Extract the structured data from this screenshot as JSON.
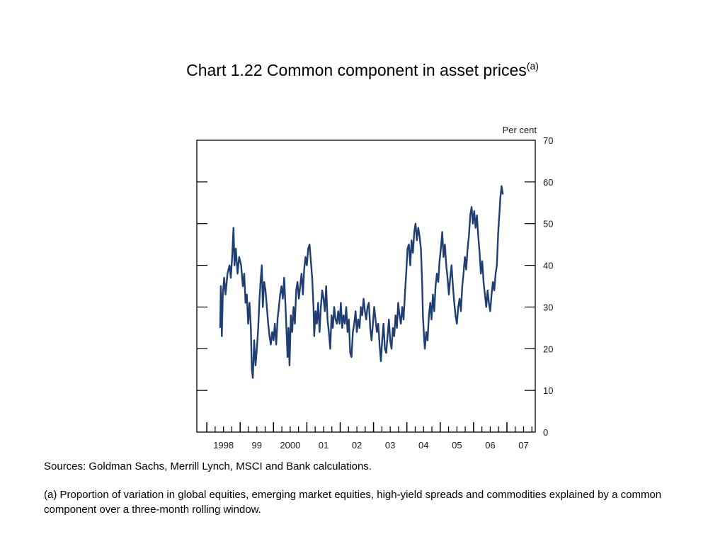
{
  "title": {
    "text": "Chart 1.22  Common component in asset prices",
    "superscript": "(a)"
  },
  "sources": "Sources:  Goldman Sachs, Merrill Lynch, MSCI and Bank calculations.",
  "footnote": "(a) Proportion of variation in global equities, emerging market equities, high-yield spreads and commodities explained by a common component over a three-month rolling window.",
  "colors": {
    "series": "#1f3f73",
    "axis": "#000000",
    "text": "#1a1a1a"
  },
  "chart_data": {
    "type": "line",
    "title": "",
    "ylabel": "Per cent",
    "y_axis_side": "right",
    "ylim": [
      0,
      70
    ],
    "yticks": [
      0,
      10,
      20,
      30,
      40,
      50,
      60,
      70
    ],
    "xlim": [
      1997.7,
      2007.85
    ],
    "xtick_labels": [
      {
        "label": "1998",
        "at": 1998.5
      },
      {
        "label": "99",
        "at": 1999.5
      },
      {
        "label": "2000",
        "at": 2000.5
      },
      {
        "label": "01",
        "at": 2001.5
      },
      {
        "label": "02",
        "at": 2002.5
      },
      {
        "label": "03",
        "at": 2003.5
      },
      {
        "label": "04",
        "at": 2004.5
      },
      {
        "label": "05",
        "at": 2005.5
      },
      {
        "label": "06",
        "at": 2006.5
      },
      {
        "label": "07",
        "at": 2007.5
      }
    ],
    "year_boundaries": [
      1998,
      1999,
      2000,
      2001,
      2002,
      2003,
      2004,
      2005,
      2006,
      2007
    ],
    "grid": false,
    "series": [
      {
        "values": [
          [
            1998.4,
            25
          ],
          [
            1998.42,
            35
          ],
          [
            1998.45,
            23
          ],
          [
            1998.48,
            33
          ],
          [
            1998.52,
            37
          ],
          [
            1998.56,
            33
          ],
          [
            1998.62,
            38
          ],
          [
            1998.68,
            40
          ],
          [
            1998.72,
            37
          ],
          [
            1998.76,
            42
          ],
          [
            1998.8,
            49
          ],
          [
            1998.83,
            40
          ],
          [
            1998.87,
            44
          ],
          [
            1998.92,
            38
          ],
          [
            1998.97,
            42
          ],
          [
            1999.03,
            40
          ],
          [
            1999.08,
            35
          ],
          [
            1999.12,
            38
          ],
          [
            1999.16,
            31
          ],
          [
            1999.2,
            33
          ],
          [
            1999.24,
            26
          ],
          [
            1999.28,
            31
          ],
          [
            1999.32,
            25
          ],
          [
            1999.35,
            15
          ],
          [
            1999.38,
            13
          ],
          [
            1999.42,
            22
          ],
          [
            1999.46,
            16
          ],
          [
            1999.5,
            20
          ],
          [
            1999.54,
            25
          ],
          [
            1999.58,
            32
          ],
          [
            1999.62,
            37
          ],
          [
            1999.65,
            40
          ],
          [
            1999.68,
            30
          ],
          [
            1999.72,
            36
          ],
          [
            1999.76,
            34
          ],
          [
            1999.8,
            30
          ],
          [
            1999.84,
            26
          ],
          [
            1999.88,
            23
          ],
          [
            1999.92,
            21
          ],
          [
            1999.96,
            24
          ],
          [
            2000.0,
            22
          ],
          [
            2000.04,
            26
          ],
          [
            2000.08,
            21
          ],
          [
            2000.12,
            27
          ],
          [
            2000.16,
            30
          ],
          [
            2000.2,
            33
          ],
          [
            2000.24,
            35
          ],
          [
            2000.28,
            32
          ],
          [
            2000.32,
            37
          ],
          [
            2000.36,
            30
          ],
          [
            2000.4,
            22
          ],
          [
            2000.42,
            18
          ],
          [
            2000.45,
            25
          ],
          [
            2000.48,
            16
          ],
          [
            2000.52,
            28
          ],
          [
            2000.56,
            24
          ],
          [
            2000.6,
            30
          ],
          [
            2000.64,
            26
          ],
          [
            2000.68,
            34
          ],
          [
            2000.72,
            36
          ],
          [
            2000.76,
            32
          ],
          [
            2000.8,
            35
          ],
          [
            2000.84,
            38
          ],
          [
            2000.88,
            33
          ],
          [
            2000.92,
            39
          ],
          [
            2000.96,
            42
          ],
          [
            2001.0,
            40
          ],
          [
            2001.04,
            44
          ],
          [
            2001.08,
            45
          ],
          [
            2001.12,
            41
          ],
          [
            2001.16,
            37
          ],
          [
            2001.2,
            30
          ],
          [
            2001.22,
            23
          ],
          [
            2001.26,
            29
          ],
          [
            2001.3,
            26
          ],
          [
            2001.34,
            31
          ],
          [
            2001.38,
            24
          ],
          [
            2001.42,
            30
          ],
          [
            2001.46,
            34
          ],
          [
            2001.5,
            32
          ],
          [
            2001.54,
            29
          ],
          [
            2001.58,
            35
          ],
          [
            2001.62,
            27
          ],
          [
            2001.66,
            24
          ],
          [
            2001.7,
            20
          ],
          [
            2001.74,
            28
          ],
          [
            2001.78,
            25
          ],
          [
            2001.82,
            30
          ],
          [
            2001.86,
            27
          ],
          [
            2001.9,
            26
          ],
          [
            2001.94,
            29
          ],
          [
            2001.98,
            26
          ],
          [
            2002.02,
            31
          ],
          [
            2002.06,
            25
          ],
          [
            2002.1,
            28
          ],
          [
            2002.14,
            26
          ],
          [
            2002.18,
            30
          ],
          [
            2002.22,
            24
          ],
          [
            2002.26,
            27
          ],
          [
            2002.3,
            19
          ],
          [
            2002.34,
            18
          ],
          [
            2002.38,
            24
          ],
          [
            2002.42,
            26
          ],
          [
            2002.46,
            29
          ],
          [
            2002.5,
            24
          ],
          [
            2002.54,
            27
          ],
          [
            2002.58,
            25
          ],
          [
            2002.62,
            30
          ],
          [
            2002.66,
            28
          ],
          [
            2002.7,
            32
          ],
          [
            2002.74,
            29
          ],
          [
            2002.78,
            27
          ],
          [
            2002.82,
            30
          ],
          [
            2002.86,
            31
          ],
          [
            2002.9,
            25
          ],
          [
            2002.94,
            22
          ],
          [
            2002.98,
            26
          ],
          [
            2003.02,
            30
          ],
          [
            2003.06,
            27
          ],
          [
            2003.1,
            24
          ],
          [
            2003.14,
            26
          ],
          [
            2003.18,
            21
          ],
          [
            2003.22,
            17
          ],
          [
            2003.26,
            22
          ],
          [
            2003.3,
            26
          ],
          [
            2003.34,
            20
          ],
          [
            2003.38,
            19
          ],
          [
            2003.42,
            23
          ],
          [
            2003.46,
            27
          ],
          [
            2003.5,
            22
          ],
          [
            2003.54,
            20
          ],
          [
            2003.58,
            25
          ],
          [
            2003.62,
            23
          ],
          [
            2003.66,
            28
          ],
          [
            2003.7,
            25
          ],
          [
            2003.74,
            31
          ],
          [
            2003.78,
            28
          ],
          [
            2003.82,
            26
          ],
          [
            2003.86,
            30
          ],
          [
            2003.9,
            27
          ],
          [
            2003.94,
            33
          ],
          [
            2003.98,
            38
          ],
          [
            2004.02,
            44
          ],
          [
            2004.06,
            45
          ],
          [
            2004.1,
            40
          ],
          [
            2004.14,
            46
          ],
          [
            2004.18,
            43
          ],
          [
            2004.22,
            48
          ],
          [
            2004.26,
            50
          ],
          [
            2004.3,
            46
          ],
          [
            2004.34,
            49
          ],
          [
            2004.38,
            47
          ],
          [
            2004.42,
            44
          ],
          [
            2004.46,
            35
          ],
          [
            2004.48,
            28
          ],
          [
            2004.52,
            22
          ],
          [
            2004.54,
            20
          ],
          [
            2004.58,
            24
          ],
          [
            2004.62,
            22
          ],
          [
            2004.66,
            28
          ],
          [
            2004.7,
            31
          ],
          [
            2004.74,
            27
          ],
          [
            2004.78,
            33
          ],
          [
            2004.82,
            29
          ],
          [
            2004.86,
            35
          ],
          [
            2004.9,
            38
          ],
          [
            2004.94,
            36
          ],
          [
            2004.98,
            41
          ],
          [
            2005.02,
            44
          ],
          [
            2005.06,
            48
          ],
          [
            2005.1,
            42
          ],
          [
            2005.14,
            45
          ],
          [
            2005.18,
            40
          ],
          [
            2005.22,
            37
          ],
          [
            2005.26,
            33
          ],
          [
            2005.3,
            37
          ],
          [
            2005.34,
            40
          ],
          [
            2005.38,
            35
          ],
          [
            2005.42,
            31
          ],
          [
            2005.46,
            28
          ],
          [
            2005.5,
            26
          ],
          [
            2005.54,
            30
          ],
          [
            2005.58,
            32
          ],
          [
            2005.62,
            29
          ],
          [
            2005.66,
            35
          ],
          [
            2005.7,
            38
          ],
          [
            2005.74,
            42
          ],
          [
            2005.78,
            39
          ],
          [
            2005.82,
            44
          ],
          [
            2005.86,
            47
          ],
          [
            2005.9,
            52
          ],
          [
            2005.94,
            54
          ],
          [
            2005.98,
            50
          ],
          [
            2006.02,
            53
          ],
          [
            2006.06,
            49
          ],
          [
            2006.1,
            52
          ],
          [
            2006.14,
            47
          ],
          [
            2006.18,
            43
          ],
          [
            2006.22,
            38
          ],
          [
            2006.26,
            41
          ],
          [
            2006.3,
            36
          ],
          [
            2006.34,
            33
          ],
          [
            2006.38,
            30
          ],
          [
            2006.42,
            34
          ],
          [
            2006.46,
            31
          ],
          [
            2006.5,
            29
          ],
          [
            2006.54,
            33
          ],
          [
            2006.58,
            36
          ],
          [
            2006.62,
            34
          ],
          [
            2006.66,
            38
          ],
          [
            2006.7,
            40
          ],
          [
            2006.74,
            48
          ],
          [
            2006.78,
            53
          ],
          [
            2006.8,
            56
          ],
          [
            2006.84,
            59
          ],
          [
            2006.88,
            57
          ]
        ]
      }
    ]
  }
}
